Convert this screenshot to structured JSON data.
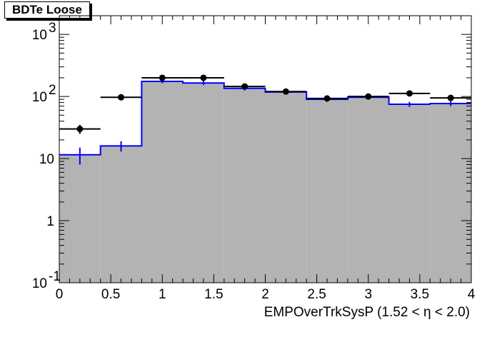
{
  "chart_data": {
    "type": "histogram",
    "title": "BDTe Loose",
    "xlabel": "EMPOverTrkSysP (1.52 <   η < 2.0)",
    "ylabel": "",
    "xlim": [
      0,
      4
    ],
    "ylim": [
      0.1,
      2000
    ],
    "yscale": "log",
    "bin_edges": [
      0,
      0.4,
      0.8,
      1.2,
      1.6,
      2.0,
      2.4,
      2.8,
      3.2,
      3.6,
      4.0
    ],
    "x_ticks": [
      {
        "v": 0,
        "t": "0"
      },
      {
        "v": 0.5,
        "t": "0.5"
      },
      {
        "v": 1,
        "t": "1"
      },
      {
        "v": 1.5,
        "t": "1.5"
      },
      {
        "v": 2,
        "t": "2"
      },
      {
        "v": 2.5,
        "t": "2.5"
      },
      {
        "v": 3,
        "t": "3"
      },
      {
        "v": 3.5,
        "t": "3.5"
      },
      {
        "v": 4,
        "t": "4"
      }
    ],
    "y_ticks": [
      {
        "v": 0.1,
        "base": "10",
        "exp": "-1"
      },
      {
        "v": 1,
        "base": "1",
        "exp": ""
      },
      {
        "v": 10,
        "base": "10",
        "exp": ""
      },
      {
        "v": 100,
        "base": "10",
        "exp": "2"
      },
      {
        "v": 1000,
        "base": "10",
        "exp": "3"
      }
    ],
    "series": [
      {
        "kind": "histogram-filled",
        "fill": "#b3b3b3",
        "line": "#0000ff",
        "values": [
          11.5,
          16,
          175,
          165,
          135,
          118,
          90,
          97,
          75,
          77
        ],
        "errors": [
          3.5,
          3,
          12,
          12,
          10,
          9,
          8,
          8,
          7,
          7
        ]
      },
      {
        "kind": "points",
        "color": "#000000",
        "values": [
          30,
          97,
          200,
          200,
          145,
          120,
          93,
          100,
          112,
          95
        ],
        "errors": [
          5,
          9,
          14,
          14,
          12,
          10,
          9,
          10,
          10,
          9
        ]
      }
    ]
  }
}
